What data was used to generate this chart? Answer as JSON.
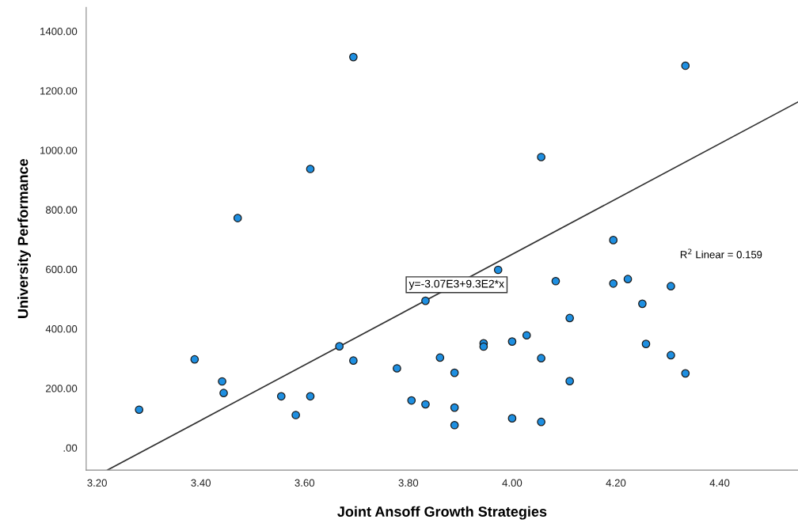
{
  "chart_data": {
    "type": "scatter",
    "xlabel": "Joint Ansoff Growth Strategies",
    "ylabel": "University Performance",
    "xlim": [
      3.179,
      4.551
    ],
    "ylim": [
      -75,
      1480
    ],
    "xticks": [
      {
        "value": 3.2,
        "label": "3.20"
      },
      {
        "value": 3.4,
        "label": "3.40"
      },
      {
        "value": 3.6,
        "label": "3.60"
      },
      {
        "value": 3.8,
        "label": "3.80"
      },
      {
        "value": 4.0,
        "label": "4.00"
      },
      {
        "value": 4.2,
        "label": "4.20"
      },
      {
        "value": 4.4,
        "label": "4.40"
      }
    ],
    "yticks": [
      {
        "value": 0,
        "label": ".00"
      },
      {
        "value": 200,
        "label": "200.00"
      },
      {
        "value": 400,
        "label": "400.00"
      },
      {
        "value": 600,
        "label": "600.00"
      },
      {
        "value": 800,
        "label": "800.00"
      },
      {
        "value": 1000,
        "label": "1000.00"
      },
      {
        "value": 1200,
        "label": "1200.00"
      },
      {
        "value": 1400,
        "label": "1400.00"
      }
    ],
    "grid": false,
    "legend": false,
    "marker": "circle",
    "series": [
      {
        "color": "#1e8fe1",
        "x": [
          3.694,
          3.611,
          3.471,
          4.334,
          4.056,
          4.195,
          3.281,
          3.388,
          3.441,
          3.444,
          3.555,
          3.583,
          3.611,
          3.667,
          3.694,
          3.778,
          3.806,
          3.833,
          3.833,
          3.973,
          3.861,
          3.889,
          3.889,
          3.889,
          3.945,
          3.945,
          4.0,
          4.0,
          4.028,
          4.056,
          4.056,
          4.084,
          4.111,
          4.111,
          4.195,
          4.223,
          4.251,
          4.258,
          4.306,
          4.306,
          4.334
        ],
        "values": [
          1313,
          937,
          772,
          1284,
          977,
          698,
          128,
          297,
          223,
          184,
          173,
          110,
          173,
          341,
          293,
          267,
          159,
          146,
          494,
          598,
          303,
          252,
          135,
          76,
          351,
          340,
          357,
          99,
          378,
          301,
          87,
          560,
          436,
          224,
          552,
          567,
          484,
          349,
          543,
          311,
          250
        ]
      },
      {
        "type": "line",
        "color": "#333333",
        "x": [
          3.22,
          4.551
        ],
        "values": [
          -75,
          1162
        ],
        "marker": "none",
        "line_style": "solid"
      }
    ],
    "annotations": [
      {
        "text": "y=-3.07E3+9.3E2*x",
        "x": 3.893,
        "y": 548
      },
      "R$^{2}$ Linear = 0.159"
    ]
  }
}
